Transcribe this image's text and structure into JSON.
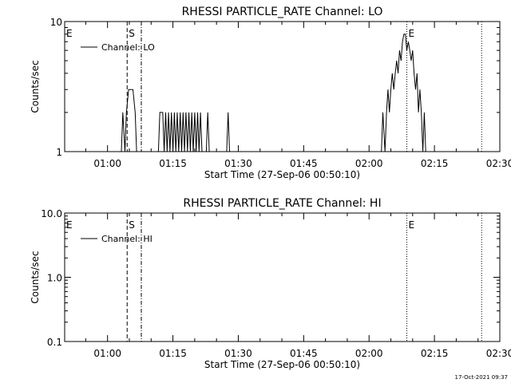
{
  "timestamp": "17-Oct-2021 09:37",
  "chart_data": [
    {
      "type": "line",
      "title": "RHESSI PARTICLE_RATE Channel: LO",
      "xlabel": "Start Time (27-Sep-06 00:50:10)",
      "ylabel": "Counts/sec",
      "yscale": "log",
      "ylim": [
        1,
        10
      ],
      "y_ticks": [
        1,
        10
      ],
      "y_tick_labels": [
        "1",
        "10"
      ],
      "xlim": [
        "00:50:10",
        "02:30:00"
      ],
      "x_ticks": [
        "01:00",
        "01:15",
        "01:30",
        "01:45",
        "02:00",
        "02:15",
        "02:30"
      ],
      "legend": {
        "position": "top-left",
        "label": "Channel: LO"
      },
      "markers": [
        {
          "time": "00:50:10",
          "label": "E",
          "style": "none"
        },
        {
          "time": "01:04:30",
          "label": "S",
          "style": "dash"
        },
        {
          "time": "01:07:45",
          "label": "",
          "style": "dotdash"
        },
        {
          "time": "02:08:40",
          "label": "E",
          "style": "dot"
        },
        {
          "time": "02:25:50",
          "label": "",
          "style": "dot"
        }
      ],
      "series": [
        {
          "name": "Channel: LO",
          "points": [
            [
              "01:03:10",
              1
            ],
            [
              "01:03:30",
              2
            ],
            [
              "01:04:00",
              1
            ],
            [
              "01:04:20",
              2
            ],
            [
              "01:04:50",
              3
            ],
            [
              "01:05:50",
              3
            ],
            [
              "01:06:20",
              2
            ],
            [
              "01:06:40",
              1
            ],
            [
              "01:11:40",
              1
            ],
            [
              "01:12:00",
              2
            ],
            [
              "01:12:40",
              2
            ],
            [
              "01:13:00",
              1
            ],
            [
              "01:13:20",
              2
            ],
            [
              "01:13:40",
              1
            ],
            [
              "01:14:00",
              2
            ],
            [
              "01:14:20",
              1
            ],
            [
              "01:14:40",
              2
            ],
            [
              "01:15:00",
              1
            ],
            [
              "01:15:20",
              2
            ],
            [
              "01:15:40",
              1
            ],
            [
              "01:16:00",
              2
            ],
            [
              "01:16:20",
              1
            ],
            [
              "01:16:40",
              2
            ],
            [
              "01:17:00",
              1
            ],
            [
              "01:17:20",
              2
            ],
            [
              "01:17:40",
              1
            ],
            [
              "01:18:00",
              2
            ],
            [
              "01:18:20",
              1
            ],
            [
              "01:18:40",
              2
            ],
            [
              "01:19:00",
              1
            ],
            [
              "01:19:20",
              2
            ],
            [
              "01:19:40",
              1
            ],
            [
              "01:20:00",
              2
            ],
            [
              "01:20:20",
              1
            ],
            [
              "01:20:40",
              2
            ],
            [
              "01:21:00",
              1
            ],
            [
              "01:21:20",
              2
            ],
            [
              "01:21:40",
              1
            ],
            [
              "01:22:40",
              1
            ],
            [
              "01:23:00",
              2
            ],
            [
              "01:23:20",
              1
            ],
            [
              "01:27:20",
              1
            ],
            [
              "01:27:40",
              2
            ],
            [
              "01:28:00",
              1
            ],
            [
              "02:02:50",
              1
            ],
            [
              "02:03:10",
              2
            ],
            [
              "02:03:40",
              1
            ],
            [
              "02:04:00",
              2
            ],
            [
              "02:04:20",
              3
            ],
            [
              "02:04:40",
              2
            ],
            [
              "02:05:00",
              3
            ],
            [
              "02:05:20",
              4
            ],
            [
              "02:05:40",
              3
            ],
            [
              "02:06:00",
              4
            ],
            [
              "02:06:20",
              5
            ],
            [
              "02:06:40",
              4
            ],
            [
              "02:07:00",
              6
            ],
            [
              "02:07:20",
              5
            ],
            [
              "02:07:40",
              7
            ],
            [
              "02:08:00",
              8
            ],
            [
              "02:08:20",
              8
            ],
            [
              "02:08:40",
              6
            ],
            [
              "02:09:00",
              7
            ],
            [
              "02:09:20",
              6
            ],
            [
              "02:09:40",
              5
            ],
            [
              "02:10:00",
              6
            ],
            [
              "02:10:20",
              4
            ],
            [
              "02:10:40",
              3
            ],
            [
              "02:11:00",
              4
            ],
            [
              "02:11:20",
              2
            ],
            [
              "02:11:40",
              3
            ],
            [
              "02:12:00",
              2
            ],
            [
              "02:12:20",
              1
            ],
            [
              "02:12:40",
              2
            ],
            [
              "02:13:00",
              1
            ]
          ]
        }
      ]
    },
    {
      "type": "line",
      "title": "RHESSI PARTICLE_RATE Channel: HI",
      "xlabel": "Start Time (27-Sep-06 00:50:10)",
      "ylabel": "Counts/sec",
      "yscale": "log",
      "ylim": [
        0.1,
        10
      ],
      "y_ticks": [
        0.1,
        1,
        10
      ],
      "y_tick_labels": [
        "0.1",
        "1.0",
        "10.0"
      ],
      "xlim": [
        "00:50:10",
        "02:30:00"
      ],
      "x_ticks": [
        "01:00",
        "01:15",
        "01:30",
        "01:45",
        "02:00",
        "02:15",
        "02:30"
      ],
      "legend": {
        "position": "top-left",
        "label": "Channel: HI"
      },
      "markers": [
        {
          "time": "00:50:10",
          "label": "E",
          "style": "none"
        },
        {
          "time": "01:04:30",
          "label": "S",
          "style": "dash"
        },
        {
          "time": "01:07:45",
          "label": "",
          "style": "dotdash"
        },
        {
          "time": "02:08:40",
          "label": "E",
          "style": "dot"
        },
        {
          "time": "02:25:50",
          "label": "",
          "style": "dot"
        }
      ],
      "series": [
        {
          "name": "Channel: HI",
          "points": []
        }
      ]
    }
  ]
}
